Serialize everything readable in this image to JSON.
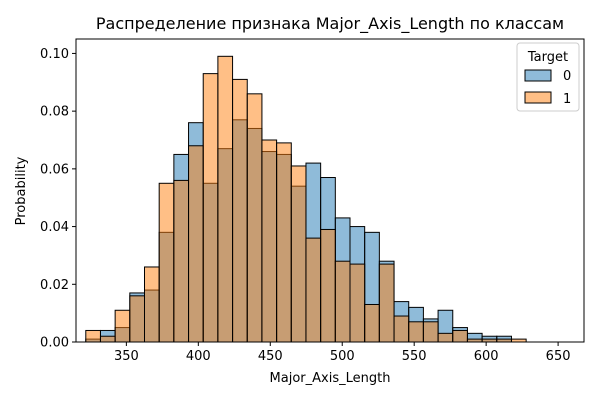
{
  "chart_data": {
    "type": "bar",
    "title": "Распределение признака Major_Axis_Length по классам",
    "xlabel": "Major_Axis_Length",
    "ylabel": "Probability",
    "xlim": [
      315,
      668
    ],
    "ylim": [
      0,
      0.105
    ],
    "x_ticks": [
      350,
      400,
      450,
      500,
      550,
      600,
      650
    ],
    "y_ticks": [
      0.0,
      0.02,
      0.04,
      0.06,
      0.08,
      0.1
    ],
    "x_tick_labels": [
      "350",
      "400",
      "450",
      "500",
      "550",
      "600",
      "650"
    ],
    "y_tick_labels": [
      "0.00",
      "0.02",
      "0.04",
      "0.06",
      "0.08",
      "0.10"
    ],
    "grid": false,
    "legend_position": "top-right",
    "legend_title": "Target",
    "bin_edges": [
      321.8,
      332.0,
      342.2,
      352.4,
      362.6,
      372.8,
      383.0,
      393.2,
      403.4,
      413.6,
      423.8,
      434.0,
      444.2,
      454.4,
      464.6,
      474.8,
      485.0,
      495.2,
      505.4,
      515.6,
      525.8,
      536.0,
      546.2,
      556.4,
      566.6,
      576.8,
      587.0,
      597.2,
      607.4,
      617.6,
      627.8,
      638.0,
      648.2,
      658.4,
      663.0
    ],
    "series": [
      {
        "name": "0",
        "color": "#1f77b4",
        "values": [
          0.001,
          0.004,
          0.005,
          0.017,
          0.018,
          0.038,
          0.065,
          0.076,
          0.055,
          0.067,
          0.077,
          0.074,
          0.066,
          0.065,
          0.054,
          0.062,
          0.057,
          0.043,
          0.04,
          0.038,
          0.028,
          0.014,
          0.012,
          0.008,
          0.011,
          0.005,
          0.003,
          0.002,
          0.002,
          0.0,
          0.0,
          0.0,
          0.0,
          0.0
        ]
      },
      {
        "name": "1",
        "color": "#ff7f0e",
        "values": [
          0.004,
          0.002,
          0.011,
          0.016,
          0.026,
          0.055,
          0.056,
          0.068,
          0.093,
          0.099,
          0.091,
          0.086,
          0.07,
          0.069,
          0.061,
          0.036,
          0.039,
          0.028,
          0.027,
          0.013,
          0.027,
          0.009,
          0.007,
          0.007,
          0.003,
          0.004,
          0.001,
          0.001,
          0.001,
          0.001,
          0.0,
          0.0,
          0.0,
          0.0
        ]
      }
    ]
  }
}
